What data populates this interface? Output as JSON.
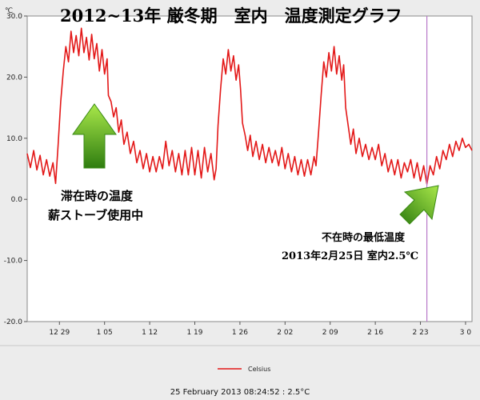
{
  "chart_data": {
    "type": "line",
    "title": "2012~13年 厳冬期　室内　温度測定グラフ",
    "ylabel": "℃",
    "ylim": [
      -20,
      30
    ],
    "yticks": [
      30,
      20,
      10,
      0,
      -10,
      -20
    ],
    "ytick_labels": [
      "30.0",
      "20.0",
      "10.0",
      "0.0",
      "-10.0",
      "-20.0"
    ],
    "xticks": [
      {
        "label": "12 29",
        "day": 0
      },
      {
        "label": "1 05",
        "day": 7
      },
      {
        "label": "1 12",
        "day": 14
      },
      {
        "label": "1 19",
        "day": 21
      },
      {
        "label": "1 26",
        "day": 28
      },
      {
        "label": "2 02",
        "day": 35
      },
      {
        "label": "2 09",
        "day": 42
      },
      {
        "label": "2 16",
        "day": 49
      },
      {
        "label": "2 23",
        "day": 56
      },
      {
        "label": "3 0",
        "day": 63
      }
    ],
    "xlim": [
      -5,
      64
    ],
    "marker_day": 57,
    "grid": false,
    "series": [
      {
        "name": "Celsius",
        "color": "#e31818",
        "points": [
          [
            -5.0,
            7.5
          ],
          [
            -4.5,
            5.2
          ],
          [
            -4.0,
            8.0
          ],
          [
            -3.5,
            4.8
          ],
          [
            -3.0,
            7.2
          ],
          [
            -2.5,
            4.0
          ],
          [
            -2.0,
            6.5
          ],
          [
            -1.5,
            3.8
          ],
          [
            -1.0,
            6.0
          ],
          [
            -0.6,
            2.6
          ],
          [
            -0.2,
            9.0
          ],
          [
            0.2,
            16.0
          ],
          [
            0.6,
            21.0
          ],
          [
            1.0,
            25.0
          ],
          [
            1.4,
            22.5
          ],
          [
            1.8,
            27.5
          ],
          [
            2.2,
            24.0
          ],
          [
            2.6,
            26.8
          ],
          [
            3.0,
            23.5
          ],
          [
            3.4,
            28.0
          ],
          [
            3.8,
            24.0
          ],
          [
            4.2,
            26.5
          ],
          [
            4.6,
            22.8
          ],
          [
            5.0,
            27.0
          ],
          [
            5.4,
            23.0
          ],
          [
            5.8,
            25.5
          ],
          [
            6.2,
            21.0
          ],
          [
            6.6,
            24.5
          ],
          [
            7.0,
            20.5
          ],
          [
            7.4,
            23.0
          ],
          [
            7.6,
            17.0
          ],
          [
            8.0,
            16.0
          ],
          [
            8.4,
            13.5
          ],
          [
            8.8,
            15.0
          ],
          [
            9.2,
            11.0
          ],
          [
            9.6,
            13.0
          ],
          [
            10.0,
            9.0
          ],
          [
            10.5,
            11.0
          ],
          [
            11.0,
            7.5
          ],
          [
            11.5,
            9.5
          ],
          [
            12.0,
            6.0
          ],
          [
            12.5,
            8.0
          ],
          [
            13.0,
            5.0
          ],
          [
            13.5,
            7.5
          ],
          [
            14.0,
            4.5
          ],
          [
            14.5,
            7.0
          ],
          [
            15.0,
            4.5
          ],
          [
            15.5,
            7.0
          ],
          [
            16.0,
            5.0
          ],
          [
            16.5,
            9.5
          ],
          [
            17.0,
            5.5
          ],
          [
            17.5,
            8.0
          ],
          [
            18.0,
            4.5
          ],
          [
            18.5,
            7.5
          ],
          [
            19.0,
            4.0
          ],
          [
            19.5,
            8.0
          ],
          [
            20.0,
            4.0
          ],
          [
            20.5,
            8.5
          ],
          [
            21.0,
            4.0
          ],
          [
            21.5,
            8.0
          ],
          [
            22.0,
            3.5
          ],
          [
            22.5,
            8.5
          ],
          [
            23.0,
            4.5
          ],
          [
            23.5,
            7.5
          ],
          [
            24.0,
            3.2
          ],
          [
            24.3,
            5.0
          ],
          [
            24.6,
            12.0
          ],
          [
            25.0,
            18.0
          ],
          [
            25.4,
            23.0
          ],
          [
            25.8,
            20.5
          ],
          [
            26.2,
            24.5
          ],
          [
            26.6,
            21.0
          ],
          [
            27.0,
            23.5
          ],
          [
            27.4,
            19.5
          ],
          [
            27.8,
            22.0
          ],
          [
            28.1,
            18.0
          ],
          [
            28.4,
            12.5
          ],
          [
            28.8,
            10.5
          ],
          [
            29.2,
            8.0
          ],
          [
            29.6,
            10.5
          ],
          [
            30.0,
            7.0
          ],
          [
            30.5,
            9.5
          ],
          [
            31.0,
            6.5
          ],
          [
            31.5,
            9.0
          ],
          [
            32.0,
            6.0
          ],
          [
            32.5,
            8.5
          ],
          [
            33.0,
            6.0
          ],
          [
            33.5,
            8.0
          ],
          [
            34.0,
            5.5
          ],
          [
            34.5,
            8.5
          ],
          [
            35.0,
            5.0
          ],
          [
            35.5,
            7.5
          ],
          [
            36.0,
            4.5
          ],
          [
            36.5,
            7.0
          ],
          [
            37.0,
            4.0
          ],
          [
            37.5,
            6.5
          ],
          [
            38.0,
            3.8
          ],
          [
            38.5,
            6.5
          ],
          [
            39.0,
            4.0
          ],
          [
            39.5,
            7.0
          ],
          [
            39.8,
            5.5
          ],
          [
            40.2,
            11.0
          ],
          [
            40.6,
            17.0
          ],
          [
            41.0,
            22.5
          ],
          [
            41.4,
            20.0
          ],
          [
            41.8,
            24.0
          ],
          [
            42.2,
            21.0
          ],
          [
            42.6,
            25.0
          ],
          [
            43.0,
            20.5
          ],
          [
            43.4,
            23.5
          ],
          [
            43.8,
            19.5
          ],
          [
            44.1,
            22.0
          ],
          [
            44.4,
            15.0
          ],
          [
            44.8,
            12.0
          ],
          [
            45.2,
            9.0
          ],
          [
            45.6,
            11.5
          ],
          [
            46.0,
            7.5
          ],
          [
            46.5,
            10.0
          ],
          [
            47.0,
            7.0
          ],
          [
            47.5,
            9.0
          ],
          [
            48.0,
            6.5
          ],
          [
            48.5,
            8.5
          ],
          [
            49.0,
            6.5
          ],
          [
            49.5,
            9.0
          ],
          [
            50.0,
            5.5
          ],
          [
            50.5,
            7.5
          ],
          [
            51.0,
            4.5
          ],
          [
            51.5,
            6.5
          ],
          [
            52.0,
            4.0
          ],
          [
            52.5,
            6.5
          ],
          [
            53.0,
            3.5
          ],
          [
            53.5,
            6.0
          ],
          [
            54.0,
            4.5
          ],
          [
            54.5,
            6.5
          ],
          [
            55.0,
            3.5
          ],
          [
            55.5,
            6.0
          ],
          [
            56.0,
            3.0
          ],
          [
            56.5,
            5.5
          ],
          [
            57.0,
            2.5
          ],
          [
            57.5,
            5.5
          ],
          [
            58.0,
            4.0
          ],
          [
            58.5,
            7.0
          ],
          [
            59.0,
            5.0
          ],
          [
            59.5,
            8.0
          ],
          [
            60.0,
            6.5
          ],
          [
            60.5,
            9.0
          ],
          [
            61.0,
            7.0
          ],
          [
            61.5,
            9.5
          ],
          [
            62.0,
            8.0
          ],
          [
            62.5,
            10.0
          ],
          [
            63.0,
            8.5
          ],
          [
            63.5,
            9.0
          ],
          [
            64.0,
            8.0
          ]
        ]
      }
    ],
    "annotations": {
      "present_line1": "滞在時の温度",
      "present_line2": "薪ストーブ使用中",
      "absent_line1": "不在時の最低温度",
      "absent_line2": "2013年2月25日 室内2.5℃"
    },
    "legend": {
      "label": "Celsius",
      "placement": "bottom-center"
    },
    "status": "25 February 2013 08:24:52 : 2.5°C"
  },
  "colors": {
    "line": "#e31818",
    "arrow_top": "#9bdc3a",
    "arrow_bottom": "#2f7d10",
    "marker": "#b878c8",
    "plot_bg": "#ffffff",
    "frame_bg": "#ececec"
  }
}
